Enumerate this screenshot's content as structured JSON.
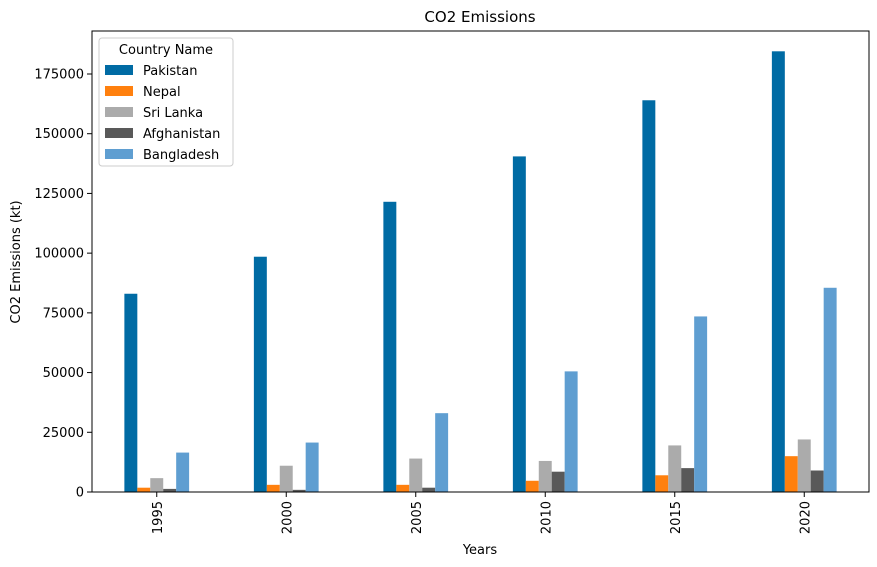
{
  "chart_data": {
    "type": "bar",
    "title": "CO2 Emissions",
    "xlabel": "Years",
    "ylabel": "CO2 Emissions (kt)",
    "categories": [
      "1995",
      "2000",
      "2005",
      "2010",
      "2015",
      "2020"
    ],
    "ylim": [
      0,
      193000
    ],
    "yticks": [
      0,
      25000,
      50000,
      75000,
      100000,
      125000,
      150000,
      175000
    ],
    "legend_title": "Country Name",
    "legend_position": "top-left",
    "grid": false,
    "series": [
      {
        "name": "Pakistan",
        "color": "#006BA4",
        "values": [
          83000,
          98500,
          121500,
          140500,
          164000,
          184500
        ]
      },
      {
        "name": "Nepal",
        "color": "#FF800E",
        "values": [
          1800,
          3000,
          3000,
          4700,
          7000,
          15000
        ]
      },
      {
        "name": "Sri Lanka",
        "color": "#ABABAB",
        "values": [
          5800,
          11000,
          14000,
          13000,
          19500,
          22000
        ]
      },
      {
        "name": "Afghanistan",
        "color": "#595959",
        "values": [
          1300,
          900,
          1800,
          8500,
          10000,
          9000
        ]
      },
      {
        "name": "Bangladesh",
        "color": "#5F9ED1",
        "values": [
          16500,
          20700,
          33000,
          50500,
          73500,
          85500
        ]
      }
    ]
  }
}
